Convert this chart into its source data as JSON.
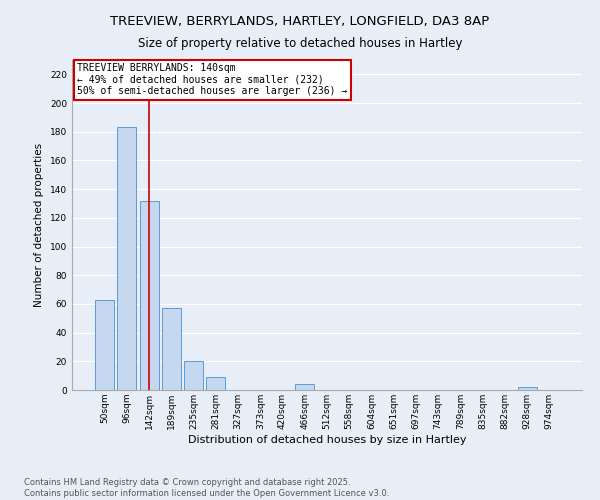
{
  "title1": "TREEVIEW, BERRYLANDS, HARTLEY, LONGFIELD, DA3 8AP",
  "title2": "Size of property relative to detached houses in Hartley",
  "xlabel": "Distribution of detached houses by size in Hartley",
  "ylabel": "Number of detached properties",
  "categories": [
    "50sqm",
    "96sqm",
    "142sqm",
    "189sqm",
    "235sqm",
    "281sqm",
    "327sqm",
    "373sqm",
    "420sqm",
    "466sqm",
    "512sqm",
    "558sqm",
    "604sqm",
    "651sqm",
    "697sqm",
    "743sqm",
    "789sqm",
    "835sqm",
    "882sqm",
    "928sqm",
    "974sqm"
  ],
  "values": [
    63,
    183,
    132,
    57,
    20,
    9,
    0,
    0,
    0,
    4,
    0,
    0,
    0,
    0,
    0,
    0,
    0,
    0,
    0,
    2,
    0
  ],
  "bar_color": "#c5d8f0",
  "bar_edge_color": "#5b9bd5",
  "property_index": 2,
  "property_line_color": "#cc0000",
  "annotation_line1": "TREEVIEW BERRYLANDS: 140sqm",
  "annotation_line2": "← 49% of detached houses are smaller (232)",
  "annotation_line3": "50% of semi-detached houses are larger (236) →",
  "annotation_box_color": "#ffffff",
  "annotation_box_edge_color": "#cc0000",
  "ylim": [
    0,
    230
  ],
  "yticks": [
    0,
    20,
    40,
    60,
    80,
    100,
    120,
    140,
    160,
    180,
    200,
    220
  ],
  "background_color": "#e8eef8",
  "plot_bg_color": "#e8eef8",
  "grid_color": "#ffffff",
  "footer_text": "Contains HM Land Registry data © Crown copyright and database right 2025.\nContains public sector information licensed under the Open Government Licence v3.0.",
  "title_fontsize": 9.5,
  "subtitle_fontsize": 8.5,
  "xlabel_fontsize": 8,
  "ylabel_fontsize": 7.5,
  "tick_fontsize": 6.5,
  "annotation_fontsize": 7,
  "footer_fontsize": 6
}
